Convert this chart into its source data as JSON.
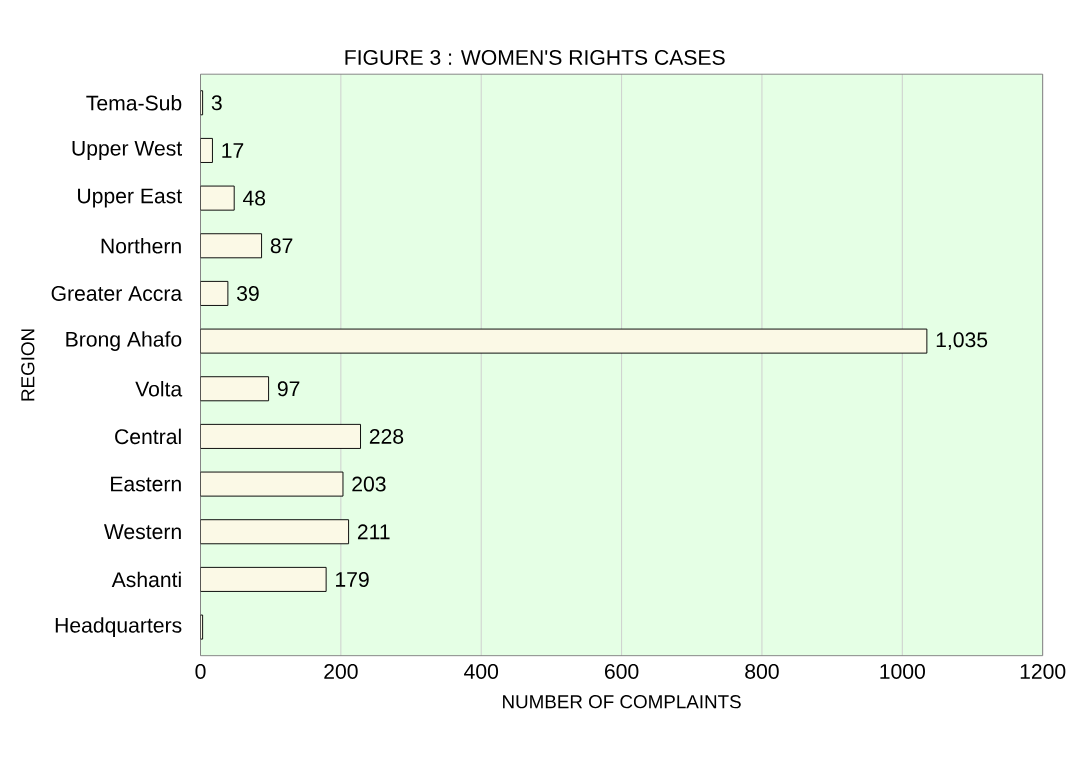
{
  "chart_data": {
    "type": "bar",
    "orientation": "horizontal",
    "title": "FIGURE 3 :  WOMEN'S RIGHTS CASES",
    "xlabel": "NUMBER OF COMPLAINTS",
    "ylabel": "REGION",
    "categories": [
      "Tema-Sub",
      "Upper West",
      "Upper East",
      "Northern",
      "Greater Accra",
      "Brong Ahafo",
      "Volta",
      "Central",
      "Eastern",
      "Western",
      "Ashanti",
      "Headquarters"
    ],
    "values": [
      3,
      17,
      48,
      87,
      39,
      1035,
      97,
      228,
      203,
      211,
      179,
      3
    ],
    "value_labels": [
      "3",
      "17",
      "48",
      "87",
      "39",
      "1,035",
      "97",
      "228",
      "203",
      "211",
      "179",
      null
    ],
    "color": "#fbf9e6",
    "xlim": [
      0,
      1200
    ],
    "xticks": [
      0,
      200,
      400,
      600,
      800,
      1000,
      1200
    ],
    "grid": "x"
  }
}
